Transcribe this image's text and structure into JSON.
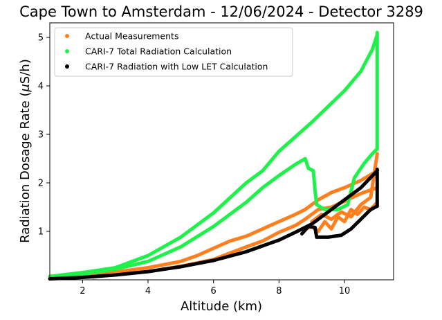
{
  "chart_data": {
    "type": "scatter",
    "title": "Cape Town to Amsterdam - 12/06/2024 - Detector 3289",
    "xlabel": "Altitude (km)",
    "ylabel_prefix": "Radiation Dosage Rate (",
    "ylabel_mu": "μ",
    "ylabel_suffix": "S/h)",
    "xlim": [
      1.0,
      11.5
    ],
    "ylim": [
      0.0,
      5.3
    ],
    "xticks": [
      2,
      4,
      6,
      8,
      10
    ],
    "yticks": [
      1,
      2,
      3,
      4,
      5
    ],
    "grid": false,
    "legend_position": "upper-left",
    "series": [
      {
        "name": "Actual Measurements",
        "color": "#ff7f1e",
        "traces": [
          [
            [
              1.0,
              0.05
            ],
            [
              2.0,
              0.07
            ],
            [
              3.0,
              0.11
            ],
            [
              4.0,
              0.17
            ],
            [
              5.0,
              0.28
            ],
            [
              6.0,
              0.42
            ],
            [
              6.5,
              0.55
            ],
            [
              7.0,
              0.68
            ],
            [
              7.5,
              0.8
            ],
            [
              8.0,
              0.98
            ],
            [
              8.5,
              1.12
            ],
            [
              8.8,
              1.25
            ],
            [
              9.2,
              1.45
            ],
            [
              9.6,
              1.5
            ],
            [
              10.0,
              1.62
            ],
            [
              10.5,
              1.78
            ],
            [
              11.0,
              1.9
            ]
          ],
          [
            [
              1.0,
              0.06
            ],
            [
              2.0,
              0.1
            ],
            [
              3.0,
              0.16
            ],
            [
              4.0,
              0.25
            ],
            [
              5.0,
              0.38
            ],
            [
              5.5,
              0.5
            ],
            [
              6.0,
              0.65
            ],
            [
              6.5,
              0.8
            ],
            [
              7.0,
              0.9
            ],
            [
              7.5,
              1.05
            ],
            [
              8.0,
              1.2
            ],
            [
              8.5,
              1.35
            ],
            [
              8.8,
              1.45
            ],
            [
              9.2,
              1.65
            ],
            [
              9.6,
              1.8
            ],
            [
              10.0,
              1.9
            ],
            [
              10.5,
              2.05
            ],
            [
              11.0,
              2.25
            ]
          ],
          [
            [
              8.8,
              1.05
            ],
            [
              9.0,
              1.1
            ],
            [
              9.2,
              1.0
            ],
            [
              9.4,
              1.2
            ],
            [
              9.6,
              1.05
            ],
            [
              9.8,
              1.3
            ],
            [
              10.0,
              1.2
            ],
            [
              10.2,
              1.45
            ],
            [
              10.4,
              1.35
            ],
            [
              10.6,
              1.5
            ],
            [
              10.8,
              1.45
            ],
            [
              11.0,
              1.6
            ]
          ],
          [
            [
              9.0,
              1.2
            ],
            [
              9.3,
              1.35
            ],
            [
              9.6,
              1.25
            ],
            [
              9.9,
              1.4
            ],
            [
              10.2,
              1.3
            ],
            [
              10.5,
              1.55
            ],
            [
              10.8,
              1.7
            ],
            [
              11.0,
              2.6
            ]
          ],
          [
            [
              1.0,
              0.07
            ],
            [
              1.5,
              0.09
            ]
          ]
        ]
      },
      {
        "name": "CARI-7 Total Radiation Calculation",
        "color": "#1ef24a",
        "traces": [
          [
            [
              1.0,
              0.07
            ],
            [
              2.0,
              0.15
            ],
            [
              3.0,
              0.25
            ],
            [
              4.0,
              0.5
            ],
            [
              5.0,
              0.88
            ],
            [
              6.0,
              1.38
            ],
            [
              7.0,
              2.0
            ],
            [
              7.5,
              2.25
            ],
            [
              8.0,
              2.65
            ],
            [
              9.0,
              3.25
            ],
            [
              10.0,
              3.9
            ],
            [
              10.5,
              4.3
            ],
            [
              10.85,
              4.75
            ],
            [
              11.0,
              5.05
            ]
          ],
          [
            [
              1.0,
              0.05
            ],
            [
              2.0,
              0.12
            ],
            [
              3.0,
              0.22
            ],
            [
              4.0,
              0.38
            ],
            [
              5.0,
              0.68
            ],
            [
              6.0,
              1.1
            ],
            [
              6.5,
              1.35
            ],
            [
              7.0,
              1.6
            ],
            [
              7.5,
              1.9
            ],
            [
              8.0,
              2.15
            ],
            [
              8.5,
              2.38
            ],
            [
              8.8,
              2.5
            ],
            [
              8.9,
              2.3
            ],
            [
              9.05,
              2.25
            ],
            [
              9.1,
              1.85
            ],
            [
              9.15,
              1.55
            ],
            [
              9.4,
              1.45
            ],
            [
              9.8,
              1.45
            ],
            [
              10.1,
              1.55
            ],
            [
              10.3,
              2.1
            ],
            [
              10.6,
              2.4
            ],
            [
              10.85,
              2.6
            ],
            [
              11.0,
              2.7
            ]
          ],
          [
            [
              11.0,
              2.7
            ],
            [
              11.0,
              5.1
            ]
          ]
        ]
      },
      {
        "name": "CARI-7 Radiation with Low LET Calculation",
        "color": "#000000",
        "traces": [
          [
            [
              1.0,
              0.02
            ],
            [
              2.0,
              0.05
            ],
            [
              3.0,
              0.1
            ],
            [
              4.0,
              0.17
            ],
            [
              5.0,
              0.27
            ],
            [
              6.0,
              0.4
            ],
            [
              7.0,
              0.58
            ],
            [
              8.0,
              0.82
            ],
            [
              8.5,
              0.98
            ],
            [
              9.0,
              1.15
            ],
            [
              9.5,
              1.4
            ],
            [
              10.0,
              1.65
            ],
            [
              10.5,
              1.9
            ],
            [
              11.0,
              2.25
            ]
          ],
          [
            [
              8.7,
              0.95
            ],
            [
              8.9,
              1.1
            ],
            [
              9.1,
              1.08
            ],
            [
              9.15,
              0.88
            ],
            [
              9.5,
              0.88
            ],
            [
              9.9,
              0.92
            ],
            [
              10.2,
              1.05
            ],
            [
              10.5,
              1.25
            ],
            [
              10.8,
              1.45
            ],
            [
              11.0,
              1.52
            ]
          ],
          [
            [
              11.0,
              1.52
            ],
            [
              11.0,
              2.28
            ]
          ]
        ]
      }
    ]
  }
}
